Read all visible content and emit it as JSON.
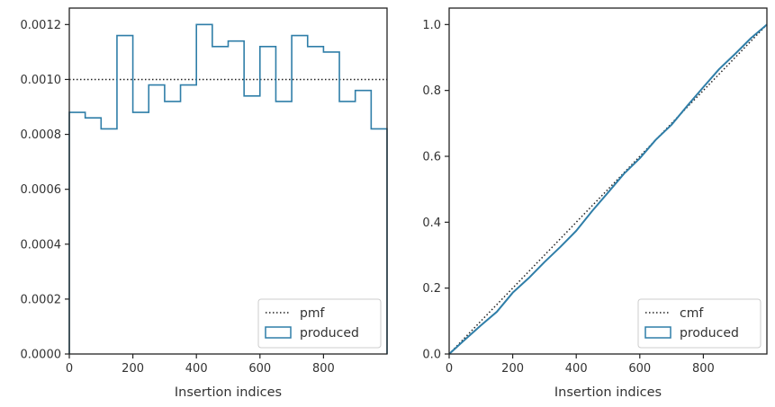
{
  "chart_data": [
    {
      "type": "histogram-step",
      "title": "",
      "xlabel": "Insertion indices",
      "ylabel": "",
      "xlim": [
        0,
        1000
      ],
      "ylim": [
        0,
        0.00126
      ],
      "xticks": [
        0,
        200,
        400,
        600,
        800
      ],
      "xtick_labels": [
        "0",
        "200",
        "400",
        "600",
        "800"
      ],
      "yticks": [
        0,
        0.0002,
        0.0004,
        0.0006,
        0.0008,
        0.001,
        0.0012
      ],
      "ytick_labels": [
        "0.0000",
        "0.0002",
        "0.0004",
        "0.0006",
        "0.0008",
        "0.0010",
        "0.0012"
      ],
      "grid": false,
      "legend_position": "lower-right",
      "reference": {
        "name": "pmf",
        "value": 0.001,
        "style": "dotted",
        "color": "#222222"
      },
      "series": [
        {
          "name": "produced",
          "color": "#2f7ea8",
          "bin_edges": [
            0,
            50,
            100,
            150,
            200,
            250,
            300,
            350,
            400,
            450,
            500,
            550,
            600,
            650,
            700,
            750,
            800,
            850,
            900,
            950,
            1000
          ],
          "values": [
            0.00088,
            0.00086,
            0.00082,
            0.00116,
            0.00088,
            0.00098,
            0.00092,
            0.00098,
            0.0012,
            0.00112,
            0.00114,
            0.00094,
            0.00112,
            0.00092,
            0.00116,
            0.00112,
            0.0011,
            0.00092,
            0.00096,
            0.00082
          ]
        }
      ]
    },
    {
      "type": "line",
      "title": "",
      "xlabel": "Insertion indices",
      "ylabel": "",
      "xlim": [
        0,
        1000
      ],
      "ylim": [
        0,
        1.05
      ],
      "xticks": [
        0,
        200,
        400,
        600,
        800
      ],
      "xtick_labels": [
        "0",
        "200",
        "400",
        "600",
        "800"
      ],
      "yticks": [
        0,
        0.2,
        0.4,
        0.6,
        0.8,
        1.0
      ],
      "ytick_labels": [
        "0.0",
        "0.2",
        "0.4",
        "0.6",
        "0.8",
        "1.0"
      ],
      "grid": false,
      "legend_position": "lower-right",
      "reference": {
        "name": "cmf",
        "x": [
          0,
          1000
        ],
        "y": [
          0,
          1.0
        ],
        "style": "dotted",
        "color": "#222222"
      },
      "series": [
        {
          "name": "produced",
          "color": "#2f7ea8",
          "x": [
            0,
            50,
            100,
            150,
            200,
            250,
            300,
            350,
            400,
            450,
            500,
            550,
            600,
            650,
            700,
            750,
            800,
            850,
            900,
            950,
            1000
          ],
          "y": [
            0,
            0.044,
            0.087,
            0.128,
            0.186,
            0.23,
            0.279,
            0.325,
            0.374,
            0.434,
            0.49,
            0.547,
            0.594,
            0.65,
            0.696,
            0.754,
            0.81,
            0.865,
            0.911,
            0.959,
            1.0
          ]
        }
      ]
    }
  ]
}
